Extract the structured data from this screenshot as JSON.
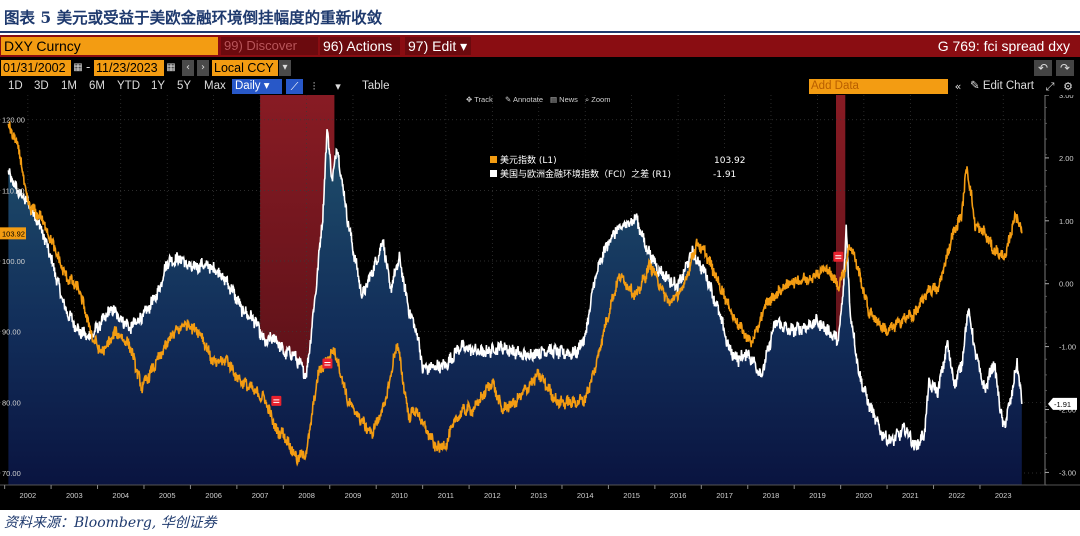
{
  "caption": {
    "title": "图表 5  美元或受益于美欧金融环境倒挂幅度的重新收敛",
    "source": "资料来源：Bloomberg, 华创证券"
  },
  "terminal": {
    "security": "DXY Curncy",
    "discover": "99) Discover",
    "actions": "96) Actions ▾",
    "edit": "97) Edit ▾",
    "function_title": "G 769: fci spread dxy",
    "start_date": "01/31/2002",
    "end_date": "11/23/2023",
    "date_dash": "-",
    "currency": "Local CCY",
    "timeframes": [
      "1D",
      "3D",
      "1M",
      "6M",
      "YTD",
      "1Y",
      "5Y",
      "Max"
    ],
    "frequency": "Daily ▾",
    "table_label": "Table",
    "add_data_placeholder": "Add Data",
    "edit_chart": "Edit Chart",
    "collapse_glyph": "«",
    "tools": {
      "track": "Track",
      "annotate": "Annotate",
      "news": "News",
      "zoom": "Zoom"
    }
  },
  "colors": {
    "orange": "#f39c12",
    "red_bar": "#8a0d12",
    "white_line": "#ffffff",
    "shade_top": "#1d4a66",
    "shade_bottom": "#0a1540",
    "recession": "#8b1a22"
  },
  "chart_data": {
    "type": "line",
    "title": "G 769: fci spread dxy",
    "series": [
      {
        "name": "美元指数 (L1)",
        "axis": "left",
        "last_value": "103.92",
        "anchors": [
          [
            2002.08,
            119.2
          ],
          [
            2002.3,
            116
          ],
          [
            2002.5,
            108
          ],
          [
            2002.8,
            106
          ],
          [
            2003.0,
            103
          ],
          [
            2003.3,
            98
          ],
          [
            2003.6,
            96
          ],
          [
            2003.9,
            89
          ],
          [
            2004.1,
            87
          ],
          [
            2004.4,
            90
          ],
          [
            2004.7,
            88
          ],
          [
            2004.95,
            82
          ],
          [
            2005.3,
            86
          ],
          [
            2005.6,
            89.5
          ],
          [
            2005.9,
            91.2
          ],
          [
            2006.2,
            90
          ],
          [
            2006.5,
            85.5
          ],
          [
            2006.8,
            86
          ],
          [
            2007.0,
            83.5
          ],
          [
            2007.3,
            82
          ],
          [
            2007.6,
            80.5
          ],
          [
            2007.85,
            76
          ],
          [
            2008.0,
            75.5
          ],
          [
            2008.3,
            72
          ],
          [
            2008.5,
            73
          ],
          [
            2008.75,
            84
          ],
          [
            2008.95,
            86
          ],
          [
            2009.1,
            87.5
          ],
          [
            2009.4,
            80
          ],
          [
            2009.9,
            75.5
          ],
          [
            2010.2,
            80
          ],
          [
            2010.45,
            88.5
          ],
          [
            2010.7,
            78
          ],
          [
            2010.85,
            79
          ],
          [
            2011.0,
            77
          ],
          [
            2011.3,
            73.5
          ],
          [
            2011.5,
            74
          ],
          [
            2011.7,
            77.5
          ],
          [
            2011.9,
            79
          ],
          [
            2012.1,
            79
          ],
          [
            2012.5,
            83
          ],
          [
            2012.7,
            79
          ],
          [
            2013.0,
            80
          ],
          [
            2013.5,
            84
          ],
          [
            2013.9,
            80
          ],
          [
            2014.3,
            80
          ],
          [
            2014.5,
            80.5
          ],
          [
            2014.7,
            84.5
          ],
          [
            2014.9,
            90
          ],
          [
            2015.1,
            95
          ],
          [
            2015.25,
            98
          ],
          [
            2015.6,
            95
          ],
          [
            2015.9,
            99.5
          ],
          [
            2016.3,
            94
          ],
          [
            2016.6,
            96
          ],
          [
            2016.9,
            102.5
          ],
          [
            2017.1,
            101
          ],
          [
            2017.5,
            95
          ],
          [
            2017.7,
            92
          ],
          [
            2018.0,
            89
          ],
          [
            2018.1,
            88.5
          ],
          [
            2018.4,
            94
          ],
          [
            2018.9,
            97
          ],
          [
            2019.3,
            97.5
          ],
          [
            2019.7,
            99
          ],
          [
            2019.95,
            96.5
          ],
          [
            2020.1,
            99
          ],
          [
            2020.2,
            102.5
          ],
          [
            2020.35,
            99.5
          ],
          [
            2020.6,
            93
          ],
          [
            2020.85,
            91
          ],
          [
            2021.0,
            90
          ],
          [
            2021.4,
            92
          ],
          [
            2021.6,
            92.5
          ],
          [
            2021.9,
            96
          ],
          [
            2022.1,
            96
          ],
          [
            2022.4,
            103.5
          ],
          [
            2022.6,
            106.5
          ],
          [
            2022.72,
            113.5
          ],
          [
            2022.9,
            105
          ],
          [
            2023.1,
            104
          ],
          [
            2023.3,
            101.5
          ],
          [
            2023.55,
            100.5
          ],
          [
            2023.75,
            106.5
          ],
          [
            2023.85,
            105.5
          ],
          [
            2023.9,
            103.92
          ]
        ]
      },
      {
        "name": "美国与欧洲金融环境指数（FCI）之差 (R1)",
        "axis": "right",
        "last_value": "-1.91",
        "anchors": [
          [
            2002.08,
            1.75
          ],
          [
            2002.3,
            1.45
          ],
          [
            2002.5,
            1.3
          ],
          [
            2002.8,
            0.85
          ],
          [
            2003.0,
            0.4
          ],
          [
            2003.3,
            -0.4
          ],
          [
            2003.6,
            -0.75
          ],
          [
            2003.8,
            -0.85
          ],
          [
            2003.9,
            -0.8
          ],
          [
            2004.3,
            -0.4
          ],
          [
            2004.7,
            -0.7
          ],
          [
            2005.0,
            -0.5
          ],
          [
            2005.3,
            -0.15
          ],
          [
            2005.5,
            0.35
          ],
          [
            2005.8,
            0.4
          ],
          [
            2006.0,
            0.25
          ],
          [
            2006.3,
            0.3
          ],
          [
            2006.6,
            0.2
          ],
          [
            2006.9,
            -0.1
          ],
          [
            2007.1,
            -0.4
          ],
          [
            2007.4,
            -0.6
          ],
          [
            2007.6,
            -0.95
          ],
          [
            2007.8,
            -0.85
          ],
          [
            2007.95,
            -1.0
          ],
          [
            2008.0,
            -1.1
          ],
          [
            2008.2,
            -1.1
          ],
          [
            2008.5,
            -1.45
          ],
          [
            2008.7,
            -0.1
          ],
          [
            2008.85,
            1.1
          ],
          [
            2008.95,
            2.5
          ],
          [
            2009.05,
            1.6
          ],
          [
            2009.15,
            2.2
          ],
          [
            2009.4,
            0.95
          ],
          [
            2009.7,
            -0.2
          ],
          [
            2010.0,
            0.35
          ],
          [
            2010.15,
            0.7
          ],
          [
            2010.3,
            -0.1
          ],
          [
            2010.5,
            0.4
          ],
          [
            2010.7,
            -0.4
          ],
          [
            2010.9,
            -0.85
          ],
          [
            2011.0,
            -1.35
          ],
          [
            2011.5,
            -1.3
          ],
          [
            2011.8,
            -1.0
          ],
          [
            2012.3,
            -1.1
          ],
          [
            2012.7,
            -1.0
          ],
          [
            2013.2,
            -1.15
          ],
          [
            2013.7,
            -1.05
          ],
          [
            2014.0,
            -1.1
          ],
          [
            2014.3,
            -1.1
          ],
          [
            2014.5,
            -0.85
          ],
          [
            2014.7,
            0.05
          ],
          [
            2014.9,
            0.5
          ],
          [
            2015.1,
            0.8
          ],
          [
            2015.6,
            1.05
          ],
          [
            2015.8,
            0.6
          ],
          [
            2016.1,
            0.2
          ],
          [
            2016.5,
            -0.05
          ],
          [
            2016.8,
            0.5
          ],
          [
            2017.1,
            0.15
          ],
          [
            2017.4,
            -0.5
          ],
          [
            2017.6,
            -1.05
          ],
          [
            2017.8,
            -1.2
          ],
          [
            2018.0,
            -1.1
          ],
          [
            2018.3,
            -1.45
          ],
          [
            2018.6,
            -0.6
          ],
          [
            2018.9,
            -0.75
          ],
          [
            2019.2,
            -0.7
          ],
          [
            2019.5,
            -0.6
          ],
          [
            2019.8,
            -0.8
          ],
          [
            2019.95,
            -0.9
          ],
          [
            2020.05,
            -0.2
          ],
          [
            2020.12,
            0.9
          ],
          [
            2020.2,
            -0.4
          ],
          [
            2020.4,
            -1.45
          ],
          [
            2020.6,
            -1.9
          ],
          [
            2020.9,
            -2.4
          ],
          [
            2021.1,
            -2.5
          ],
          [
            2021.4,
            -2.3
          ],
          [
            2021.6,
            -2.6
          ],
          [
            2021.8,
            -2.4
          ],
          [
            2021.9,
            -1.6
          ],
          [
            2022.1,
            -1.7
          ],
          [
            2022.3,
            -0.95
          ],
          [
            2022.45,
            -1.6
          ],
          [
            2022.6,
            -1.3
          ],
          [
            2022.75,
            -0.4
          ],
          [
            2022.9,
            -1.1
          ],
          [
            2023.1,
            -1.7
          ],
          [
            2023.3,
            -1.25
          ],
          [
            2023.5,
            -2.3
          ],
          [
            2023.65,
            -1.9
          ],
          [
            2023.8,
            -1.25
          ],
          [
            2023.85,
            -1.55
          ],
          [
            2023.9,
            -1.91
          ]
        ]
      }
    ],
    "shaded_periods": [
      [
        2007.5,
        2009.1
      ],
      [
        2019.9,
        2020.1
      ]
    ],
    "event_markers": [
      [
        2007.85,
        80.2
      ],
      [
        2008.95,
        85.5
      ],
      [
        2019.95,
        100.6
      ]
    ],
    "x_ticks": [
      "2002",
      "2003",
      "2004",
      "2005",
      "2006",
      "2007",
      "2008",
      "2009",
      "2010",
      "2011",
      "2012",
      "2013",
      "2014",
      "2015",
      "2016",
      "2017",
      "2018",
      "2019",
      "2020",
      "2021",
      "2022",
      "2023"
    ],
    "xlim": [
      2001.9,
      2024.4
    ],
    "y_left": {
      "ticks": [
        "70.00",
        "80.00",
        "90.00",
        "100.00",
        "110.00",
        "120.00"
      ],
      "ylim": [
        68.3,
        123.5
      ]
    },
    "y_right": {
      "ticks": [
        "-3.00",
        "-2.00",
        "-1.00",
        "0.00",
        "1.00",
        "2.00",
        "3.00"
      ],
      "ylim": [
        -3.2,
        3.0
      ]
    }
  }
}
